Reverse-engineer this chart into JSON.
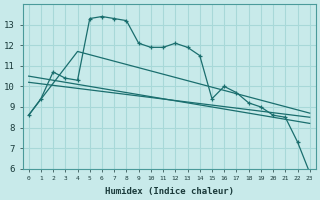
{
  "xlabel": "Humidex (Indice chaleur)",
  "background_color": "#c8eaea",
  "grid_color": "#a8d8d8",
  "line_color": "#1a6e6e",
  "x_ticks": [
    0,
    1,
    2,
    3,
    4,
    5,
    6,
    7,
    8,
    9,
    10,
    11,
    12,
    13,
    14,
    15,
    16,
    17,
    18,
    19,
    20,
    21,
    22,
    23
  ],
  "ylim": [
    6,
    14
  ],
  "xlim": [
    -0.5,
    23.5
  ],
  "yticks": [
    6,
    7,
    8,
    9,
    10,
    11,
    12,
    13
  ],
  "series1_x": [
    0,
    1,
    2,
    3,
    4,
    5,
    6,
    7,
    8,
    9,
    10,
    11,
    12,
    13,
    14,
    15,
    16,
    17,
    18,
    19,
    20,
    21,
    22,
    23
  ],
  "series1_y": [
    8.6,
    9.4,
    10.7,
    10.4,
    10.3,
    13.3,
    13.4,
    13.3,
    13.2,
    12.1,
    11.9,
    11.9,
    12.1,
    11.9,
    11.5,
    9.4,
    10.0,
    9.7,
    9.2,
    9.0,
    8.6,
    8.5,
    7.3,
    5.8
  ],
  "series2_x": [
    0,
    4,
    23
  ],
  "series2_y": [
    8.6,
    11.7,
    8.7
  ],
  "series3_x": [
    0,
    23
  ],
  "series3_y": [
    10.2,
    8.5
  ],
  "series4_x": [
    0,
    23
  ],
  "series4_y": [
    10.5,
    8.2
  ]
}
